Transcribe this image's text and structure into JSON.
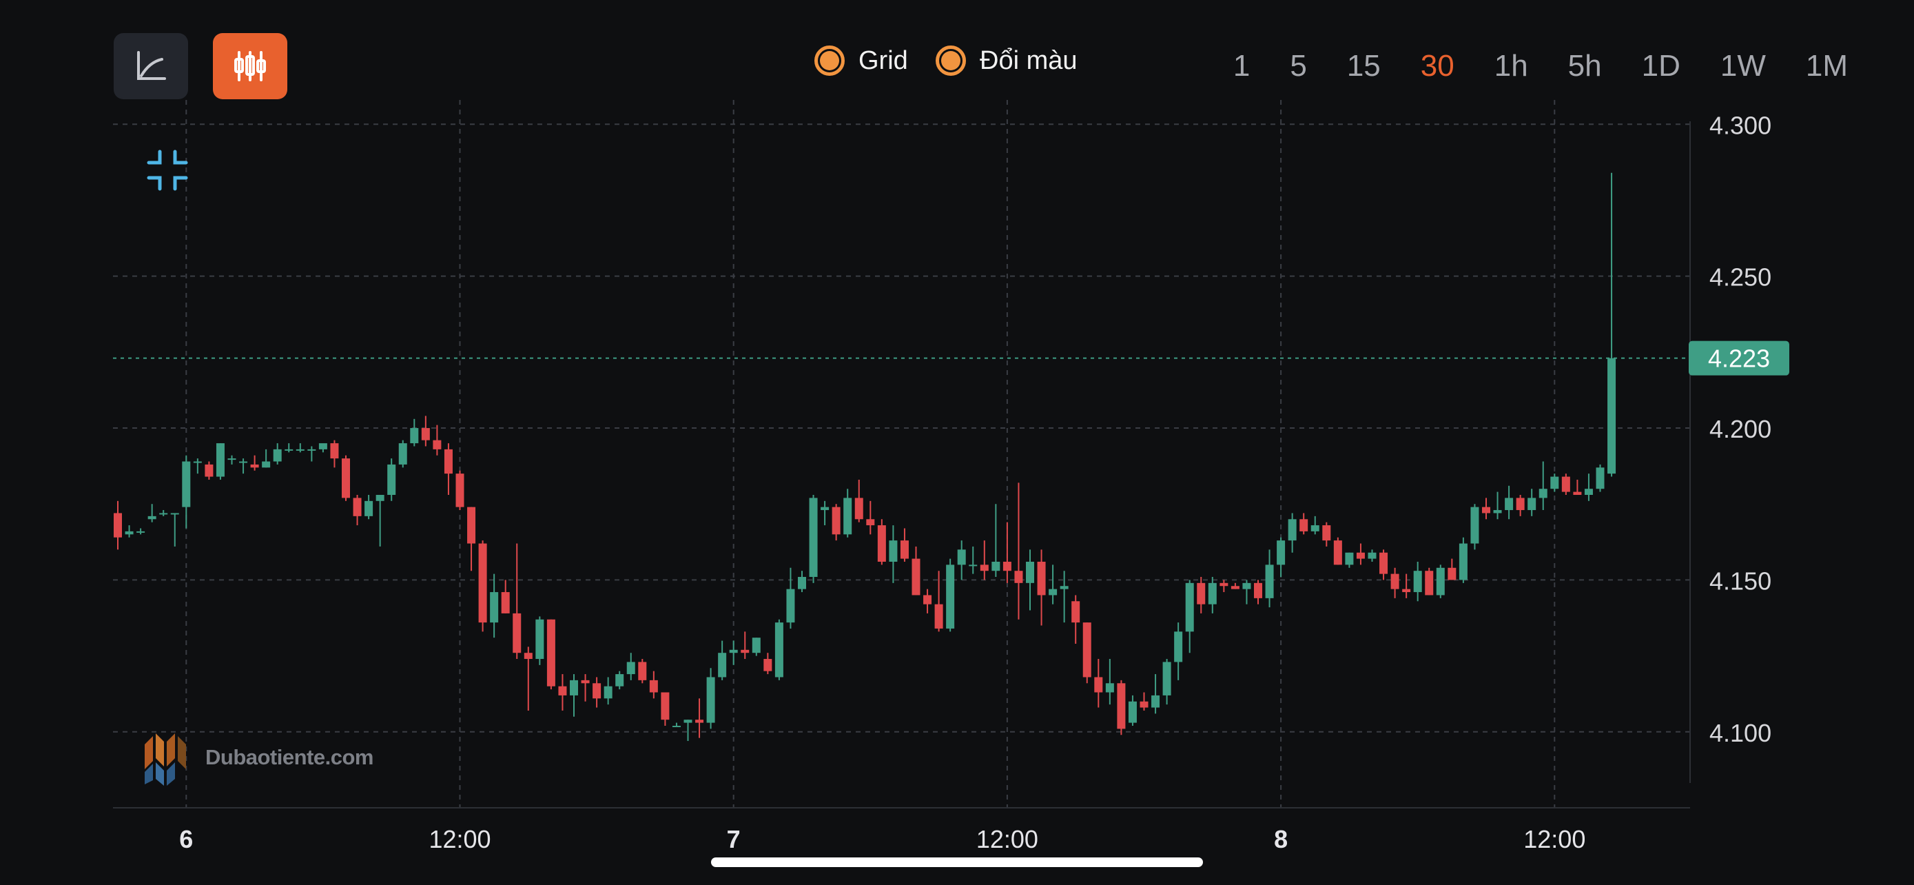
{
  "toolbar": {
    "chart_type_buttons": [
      {
        "icon": "line-chart-icon",
        "active": false
      },
      {
        "icon": "candlestick-icon",
        "active": true
      }
    ],
    "grid_toggle_label": "Grid",
    "color_toggle_label": "Đổi màu",
    "timeframes": [
      "1",
      "5",
      "15",
      "30",
      "1h",
      "5h",
      "1D",
      "1W",
      "1M"
    ],
    "active_timeframe": "30",
    "accent_color": "#e8612e"
  },
  "watermark": "Dubaotiente.com",
  "collapse_icon": "collapse-icon",
  "colors": {
    "up": "#3f9e85",
    "down": "#e0494c",
    "background": "#0e0f11",
    "price_tag": "#3f9e85"
  },
  "chart_data": {
    "type": "candlestick",
    "title": "",
    "y_ticks": [
      "4.300",
      "4.250",
      "4.200",
      "4.150",
      "4.100"
    ],
    "ylim": [
      4.075,
      4.308
    ],
    "x_ticks": [
      {
        "label": "6",
        "bold": true,
        "index": 6
      },
      {
        "label": "12:00",
        "bold": false,
        "index": 30
      },
      {
        "label": "7",
        "bold": true,
        "index": 54
      },
      {
        "label": "12:00",
        "bold": false,
        "index": 78
      },
      {
        "label": "8",
        "bold": true,
        "index": 102
      },
      {
        "label": "12:00",
        "bold": false,
        "index": 126
      }
    ],
    "current_price": 4.223,
    "current_price_label": "4.223",
    "grid": true,
    "candles": [
      [
        4.172,
        4.176,
        4.16,
        4.164
      ],
      [
        4.165,
        4.168,
        4.164,
        4.166
      ],
      [
        4.166,
        4.167,
        4.165,
        4.166
      ],
      [
        4.17,
        4.175,
        4.169,
        4.171
      ],
      [
        4.172,
        4.173,
        4.171,
        4.172
      ],
      [
        4.172,
        4.172,
        4.161,
        4.172
      ],
      [
        4.174,
        4.191,
        4.167,
        4.189
      ],
      [
        4.189,
        4.19,
        4.185,
        4.189
      ],
      [
        4.188,
        4.189,
        4.183,
        4.184
      ],
      [
        4.184,
        4.195,
        4.183,
        4.195
      ],
      [
        4.19,
        4.191,
        4.188,
        4.19
      ],
      [
        4.189,
        4.19,
        4.185,
        4.189
      ],
      [
        4.188,
        4.191,
        4.186,
        4.187
      ],
      [
        4.187,
        4.193,
        4.187,
        4.189
      ],
      [
        4.189,
        4.195,
        4.188,
        4.193
      ],
      [
        4.193,
        4.195,
        4.192,
        4.193
      ],
      [
        4.193,
        4.195,
        4.192,
        4.193
      ],
      [
        4.193,
        4.194,
        4.189,
        4.193
      ],
      [
        4.193,
        4.194,
        4.192,
        4.195
      ],
      [
        4.195,
        4.196,
        4.187,
        4.19
      ],
      [
        4.19,
        4.191,
        4.176,
        4.177
      ],
      [
        4.177,
        4.178,
        4.168,
        4.171
      ],
      [
        4.171,
        4.178,
        4.17,
        4.176
      ],
      [
        4.176,
        4.178,
        4.161,
        4.178
      ],
      [
        4.178,
        4.19,
        4.176,
        4.188
      ],
      [
        4.188,
        4.196,
        4.187,
        4.195
      ],
      [
        4.195,
        4.203,
        4.194,
        4.2
      ],
      [
        4.2,
        4.204,
        4.194,
        4.196
      ],
      [
        4.196,
        4.201,
        4.191,
        4.193
      ],
      [
        4.193,
        4.195,
        4.178,
        4.185
      ],
      [
        4.185,
        4.186,
        4.173,
        4.174
      ],
      [
        4.174,
        4.174,
        4.153,
        4.162
      ],
      [
        4.162,
        4.163,
        4.133,
        4.136
      ],
      [
        4.136,
        4.152,
        4.131,
        4.146
      ],
      [
        4.146,
        4.15,
        4.139,
        4.139
      ],
      [
        4.139,
        4.162,
        4.124,
        4.126
      ],
      [
        4.126,
        4.128,
        4.107,
        4.124
      ],
      [
        4.124,
        4.138,
        4.122,
        4.137
      ],
      [
        4.137,
        4.137,
        4.114,
        4.115
      ],
      [
        4.115,
        4.119,
        4.107,
        4.112
      ],
      [
        4.112,
        4.119,
        4.105,
        4.117
      ],
      [
        4.117,
        4.119,
        4.11,
        4.116
      ],
      [
        4.116,
        4.118,
        4.108,
        4.111
      ],
      [
        4.111,
        4.118,
        4.109,
        4.115
      ],
      [
        4.115,
        4.12,
        4.114,
        4.119
      ],
      [
        4.119,
        4.126,
        4.117,
        4.123
      ],
      [
        4.123,
        4.124,
        4.116,
        4.117
      ],
      [
        4.117,
        4.12,
        4.111,
        4.113
      ],
      [
        4.113,
        4.113,
        4.102,
        4.104
      ],
      [
        4.102,
        4.103,
        4.102,
        4.102
      ],
      [
        4.103,
        4.104,
        4.097,
        4.104
      ],
      [
        4.104,
        4.111,
        4.098,
        4.103
      ],
      [
        4.103,
        4.121,
        4.101,
        4.118
      ],
      [
        4.118,
        4.13,
        4.117,
        4.126
      ],
      [
        4.126,
        4.13,
        4.122,
        4.127
      ],
      [
        4.127,
        4.133,
        4.124,
        4.126
      ],
      [
        4.126,
        4.131,
        4.125,
        4.131
      ],
      [
        4.124,
        4.126,
        4.119,
        4.12
      ],
      [
        4.118,
        4.137,
        4.117,
        4.136
      ],
      [
        4.136,
        4.154,
        4.134,
        4.147
      ],
      [
        4.147,
        4.153,
        4.146,
        4.151
      ],
      [
        4.151,
        4.178,
        4.149,
        4.177
      ],
      [
        4.173,
        4.176,
        4.168,
        4.174
      ],
      [
        4.174,
        4.175,
        4.163,
        4.165
      ],
      [
        4.165,
        4.18,
        4.164,
        4.177
      ],
      [
        4.177,
        4.183,
        4.169,
        4.17
      ],
      [
        4.17,
        4.176,
        4.165,
        4.168
      ],
      [
        4.168,
        4.17,
        4.155,
        4.156
      ],
      [
        4.156,
        4.168,
        4.149,
        4.163
      ],
      [
        4.163,
        4.167,
        4.156,
        4.157
      ],
      [
        4.157,
        4.161,
        4.145,
        4.145
      ],
      [
        4.145,
        4.147,
        4.139,
        4.142
      ],
      [
        4.142,
        4.153,
        4.133,
        4.134
      ],
      [
        4.134,
        4.157,
        4.133,
        4.155
      ],
      [
        4.155,
        4.163,
        4.15,
        4.16
      ],
      [
        4.155,
        4.161,
        4.152,
        4.155
      ],
      [
        4.155,
        4.163,
        4.15,
        4.153
      ],
      [
        4.153,
        4.175,
        4.151,
        4.156
      ],
      [
        4.156,
        4.169,
        4.149,
        4.153
      ],
      [
        4.153,
        4.182,
        4.137,
        4.149
      ],
      [
        4.149,
        4.16,
        4.14,
        4.156
      ],
      [
        4.156,
        4.16,
        4.135,
        4.145
      ],
      [
        4.145,
        4.155,
        4.142,
        4.147
      ],
      [
        4.147,
        4.153,
        4.136,
        4.148
      ],
      [
        4.143,
        4.145,
        4.129,
        4.136
      ],
      [
        4.136,
        4.136,
        4.116,
        4.118
      ],
      [
        4.118,
        4.124,
        4.108,
        4.113
      ],
      [
        4.113,
        4.124,
        4.109,
        4.116
      ],
      [
        4.116,
        4.117,
        4.099,
        4.101
      ],
      [
        4.103,
        4.112,
        4.102,
        4.11
      ],
      [
        4.11,
        4.113,
        4.107,
        4.108
      ],
      [
        4.108,
        4.119,
        4.106,
        4.112
      ],
      [
        4.112,
        4.124,
        4.109,
        4.123
      ],
      [
        4.123,
        4.136,
        4.117,
        4.133
      ],
      [
        4.133,
        4.15,
        4.126,
        4.149
      ],
      [
        4.149,
        4.151,
        4.139,
        4.142
      ],
      [
        4.142,
        4.151,
        4.139,
        4.149
      ],
      [
        4.149,
        4.15,
        4.146,
        4.148
      ],
      [
        4.148,
        4.149,
        4.147,
        4.147
      ],
      [
        4.147,
        4.15,
        4.142,
        4.149
      ],
      [
        4.149,
        4.15,
        4.142,
        4.144
      ],
      [
        4.144,
        4.16,
        4.141,
        4.155
      ],
      [
        4.155,
        4.164,
        4.151,
        4.163
      ],
      [
        4.163,
        4.172,
        4.159,
        4.17
      ],
      [
        4.17,
        4.172,
        4.165,
        4.166
      ],
      [
        4.166,
        4.171,
        4.165,
        4.168
      ],
      [
        4.168,
        4.169,
        4.161,
        4.163
      ],
      [
        4.163,
        4.164,
        4.155,
        4.155
      ],
      [
        4.155,
        4.159,
        4.154,
        4.159
      ],
      [
        4.159,
        4.162,
        4.155,
        4.157
      ],
      [
        4.157,
        4.16,
        4.156,
        4.159
      ],
      [
        4.159,
        4.16,
        4.15,
        4.152
      ],
      [
        4.152,
        4.154,
        4.144,
        4.147
      ],
      [
        4.147,
        4.152,
        4.144,
        4.146
      ],
      [
        4.146,
        4.156,
        4.143,
        4.153
      ],
      [
        4.153,
        4.154,
        4.145,
        4.145
      ],
      [
        4.145,
        4.155,
        4.144,
        4.154
      ],
      [
        4.154,
        4.157,
        4.15,
        4.15
      ],
      [
        4.15,
        4.164,
        4.149,
        4.162
      ],
      [
        4.162,
        4.175,
        4.16,
        4.174
      ],
      [
        4.174,
        4.177,
        4.17,
        4.172
      ],
      [
        4.172,
        4.179,
        4.17,
        4.173
      ],
      [
        4.173,
        4.181,
        4.17,
        4.177
      ],
      [
        4.177,
        4.178,
        4.171,
        4.173
      ],
      [
        4.173,
        4.18,
        4.171,
        4.177
      ],
      [
        4.177,
        4.189,
        4.173,
        4.18
      ],
      [
        4.18,
        4.185,
        4.179,
        4.184
      ],
      [
        4.184,
        4.185,
        4.178,
        4.179
      ],
      [
        4.179,
        4.183,
        4.178,
        4.178
      ],
      [
        4.178,
        4.185,
        4.176,
        4.18
      ],
      [
        4.18,
        4.188,
        4.179,
        4.187
      ],
      [
        4.185,
        4.284,
        4.184,
        4.223
      ]
    ]
  }
}
